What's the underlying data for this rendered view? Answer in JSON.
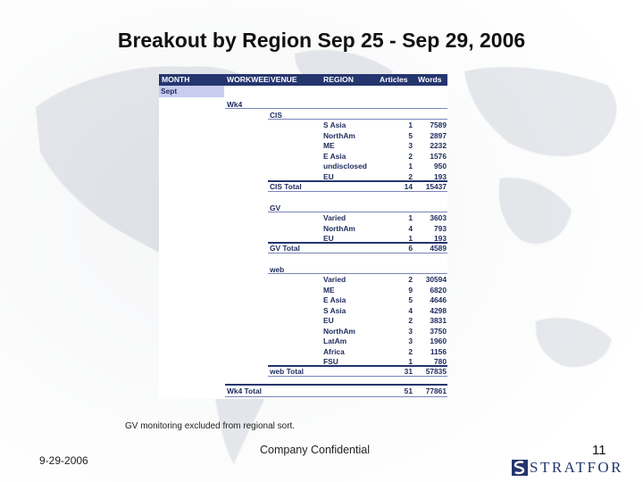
{
  "slide": {
    "title": "Breakout by Region Sep 25 - Sep 29, 2006",
    "note": "GV monitoring excluded from regional sort.",
    "footer": {
      "date": "9-29-2006",
      "confidential": "Company Confidential",
      "page_number": "11",
      "logo_text": "STRATFOR"
    }
  },
  "report": {
    "headers": {
      "month": "MONTH",
      "workweek": "WORKWEEK",
      "venue": "VENUE",
      "region": "REGION",
      "articles": "Articles",
      "words": "Words"
    },
    "month": "Sept",
    "week": "Wk4",
    "venues": [
      {
        "name": "CIS",
        "rows": [
          {
            "region": "S Asia",
            "articles": "1",
            "words": "7589"
          },
          {
            "region": "NorthAm",
            "articles": "5",
            "words": "2897"
          },
          {
            "region": "ME",
            "articles": "3",
            "words": "2232"
          },
          {
            "region": "E Asia",
            "articles": "2",
            "words": "1576"
          },
          {
            "region": "undisclosed",
            "articles": "1",
            "words": "950"
          },
          {
            "region": "EU",
            "articles": "2",
            "words": "193"
          }
        ],
        "total_label": "CIS Total",
        "total_articles": "14",
        "total_words": "15437"
      },
      {
        "name": "GV",
        "rows": [
          {
            "region": "Varied",
            "articles": "1",
            "words": "3603"
          },
          {
            "region": "NorthAm",
            "articles": "4",
            "words": "793"
          },
          {
            "region": "EU",
            "articles": "1",
            "words": "193"
          }
        ],
        "total_label": "GV Total",
        "total_articles": "6",
        "total_words": "4589"
      },
      {
        "name": "web",
        "rows": [
          {
            "region": "Varied",
            "articles": "2",
            "words": "30594"
          },
          {
            "region": "ME",
            "articles": "9",
            "words": "6820"
          },
          {
            "region": "E Asia",
            "articles": "5",
            "words": "4646"
          },
          {
            "region": "S Asia",
            "articles": "4",
            "words": "4298"
          },
          {
            "region": "EU",
            "articles": "2",
            "words": "3831"
          },
          {
            "region": "NorthAm",
            "articles": "3",
            "words": "3750"
          },
          {
            "region": "LatAm",
            "articles": "3",
            "words": "1960"
          },
          {
            "region": "Africa",
            "articles": "2",
            "words": "1156"
          },
          {
            "region": "FSU",
            "articles": "1",
            "words": "780"
          }
        ],
        "total_label": "web Total",
        "total_articles": "31",
        "total_words": "57835"
      }
    ],
    "week_total_label": "Wk4 Total",
    "week_total_articles": "51",
    "week_total_words": "77861"
  }
}
